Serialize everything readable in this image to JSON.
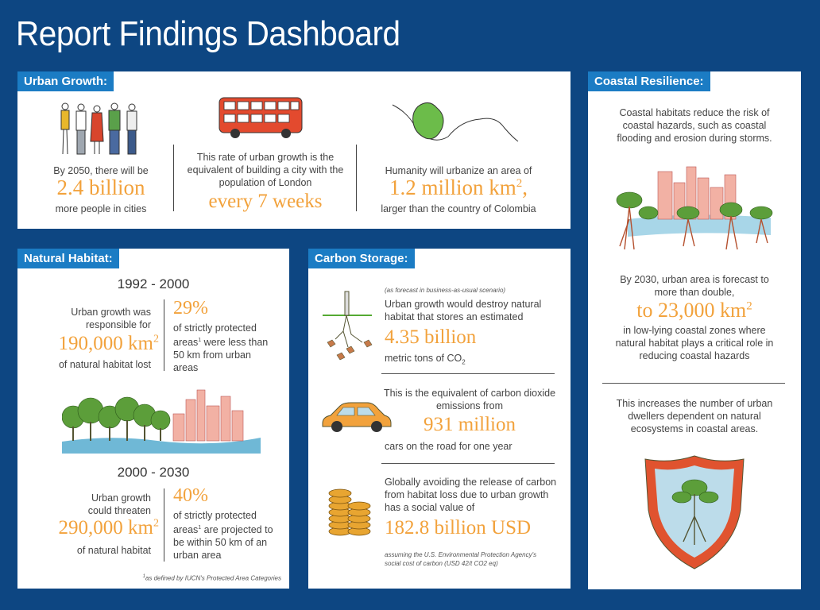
{
  "title": "Report Findings Dashboard",
  "urban_growth": {
    "tag": "Urban Growth:",
    "col1": {
      "pre": "By 2050, there will be",
      "big": "2.4 billion",
      "post": "more people in cities"
    },
    "col2": {
      "pre": "This rate of urban growth is the equivalent of building a city with the population of London",
      "big": "every 7 weeks"
    },
    "col3": {
      "pre": "Humanity will urbanize an area of",
      "big": "1.2 million km",
      "sup": "2",
      "big_suffix": ",",
      "post": "larger than the country of Colombia"
    }
  },
  "natural_habitat": {
    "tag": "Natural Habitat:",
    "period1": "1992 - 2000",
    "p1_left_pre": "Urban growth was responsible for",
    "p1_left_big": "190,000 km",
    "p1_left_post": "of natural habitat lost",
    "p1_right_big": "29%",
    "p1_right_text": "of strictly protected areas",
    "p1_right_text2": " were less than 50 km from urban areas",
    "period2": "2000 - 2030",
    "p2_left_pre": "Urban growth could threaten",
    "p2_left_big": "290,000 km",
    "p2_left_post": "of natural habitat",
    "p2_right_big": "40%",
    "p2_right_text": "of strictly protected areas",
    "p2_right_text2": " are projected to be within 50 km of an urban area",
    "sup2": "2",
    "sup1": "1",
    "footnote": "as defined by IUCN's Protected Area Categories"
  },
  "carbon_storage": {
    "tag": "Carbon Storage:",
    "forecast_note": "(as forecast in business-as-usual scenario)",
    "block1_pre": "Urban growth would destroy natural habitat that stores an estimated",
    "block1_big": "4.35 billion",
    "block1_post": "metric tons of CO",
    "block1_sub": "2",
    "block2_pre": "This is the equivalent of carbon dioxide emissions from",
    "block2_big": "931 million",
    "block2_post": "cars on the road for one year",
    "block3_pre": "Globally avoiding the release of carbon from habitat loss due to urban growth has a social value of",
    "block3_big": "182.8 billion USD",
    "block3_note": "assuming the U.S. Environmental Protection Agency's social cost of carbon (USD 42/t CO2 eq)"
  },
  "coastal_resilience": {
    "tag": "Coastal Resilience:",
    "intro": "Coastal habitats reduce the risk of coastal hazards, such as coastal flooding and erosion during storms.",
    "pre": "By 2030, urban area is forecast to more than double,",
    "big": "to 23,000 km",
    "sup": "2",
    "post": "in low-lying coastal zones where natural habitat plays a critical role in reducing coastal hazards",
    "closing": "This increases the number of urban dwellers dependent on natural ecosystems in coastal areas."
  },
  "colors": {
    "background": "#0d4682",
    "tag": "#1b7cc4",
    "accent": "#f2a23c"
  }
}
